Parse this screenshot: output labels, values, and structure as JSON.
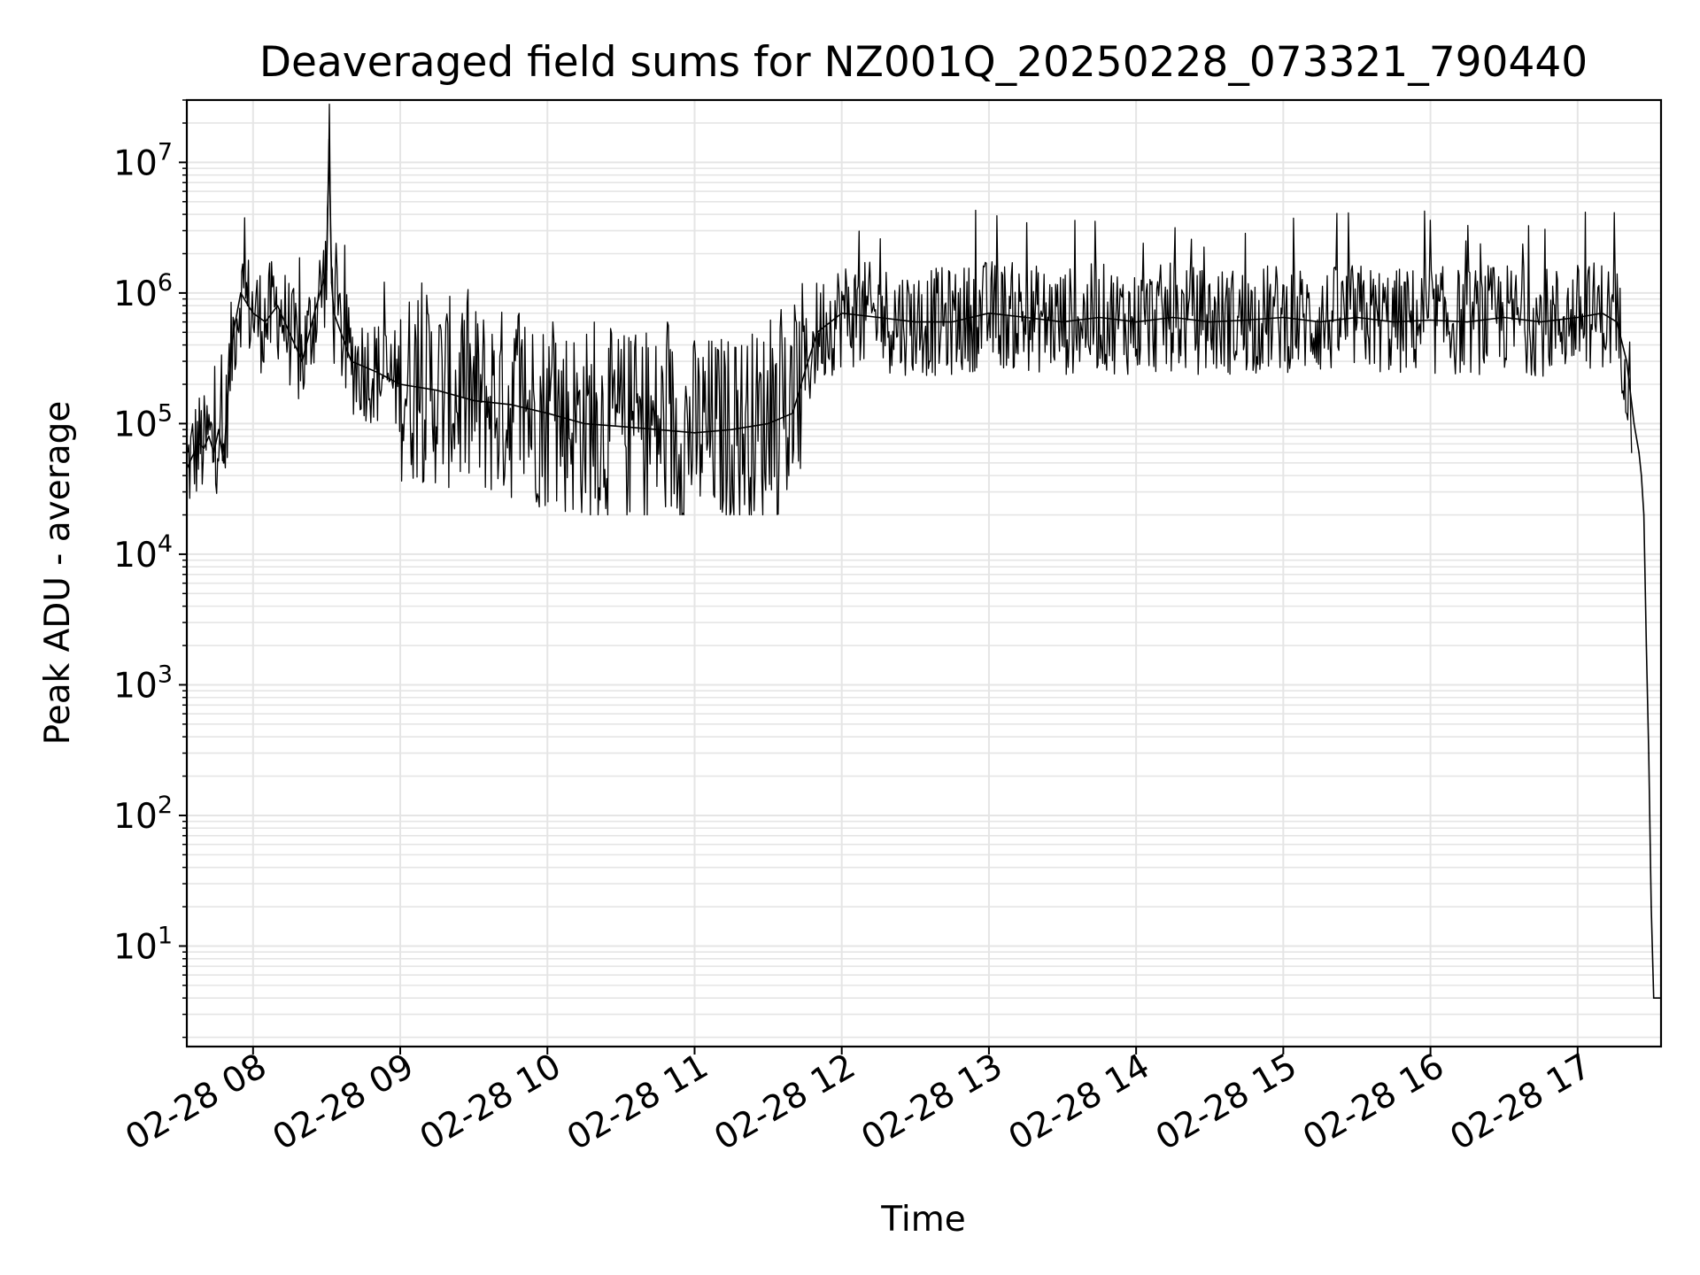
{
  "chart_data": {
    "type": "line",
    "title": "Deaveraged field sums for NZ001Q_20250228_073321_790440",
    "xlabel": "Time",
    "ylabel": "Peak ADU - average",
    "yscale": "log",
    "grid": true,
    "line_color": "#000000",
    "grid_color": "#e5e5e5",
    "xlim": [
      "2025-02-28 07:33",
      "2025-02-28 17:34"
    ],
    "ylim": [
      1.7,
      30000000
    ],
    "x_ticks": [
      {
        "value": "2025-02-28 08:00",
        "label": "02-28 08"
      },
      {
        "value": "2025-02-28 09:00",
        "label": "02-28 09"
      },
      {
        "value": "2025-02-28 10:00",
        "label": "02-28 10"
      },
      {
        "value": "2025-02-28 11:00",
        "label": "02-28 11"
      },
      {
        "value": "2025-02-28 12:00",
        "label": "02-28 12"
      },
      {
        "value": "2025-02-28 13:00",
        "label": "02-28 13"
      },
      {
        "value": "2025-02-28 14:00",
        "label": "02-28 14"
      },
      {
        "value": "2025-02-28 15:00",
        "label": "02-28 15"
      },
      {
        "value": "2025-02-28 16:00",
        "label": "02-28 16"
      },
      {
        "value": "2025-02-28 17:00",
        "label": "02-28 17"
      }
    ],
    "y_ticks": [
      {
        "value": 10,
        "base": "10",
        "exp": "1"
      },
      {
        "value": 100,
        "base": "10",
        "exp": "2"
      },
      {
        "value": 1000,
        "base": "10",
        "exp": "3"
      },
      {
        "value": 10000,
        "base": "10",
        "exp": "4"
      },
      {
        "value": 100000,
        "base": "10",
        "exp": "5"
      },
      {
        "value": 1000000,
        "base": "10",
        "exp": "6"
      },
      {
        "value": 10000000,
        "base": "10",
        "exp": "7"
      }
    ],
    "series": [
      {
        "x": [
          "2025-02-28 07:33",
          "2025-02-28 07:36",
          "2025-02-28 07:38",
          "2025-02-28 07:40",
          "2025-02-28 07:42",
          "2025-02-28 07:44",
          "2025-02-28 07:46",
          "2025-02-28 07:48",
          "2025-02-28 07:50",
          "2025-02-28 07:52",
          "2025-02-28 07:55",
          "2025-02-28 07:58",
          "2025-02-28 08:00",
          "2025-02-28 08:05",
          "2025-02-28 08:10",
          "2025-02-28 08:20",
          "2025-02-28 08:25",
          "2025-02-28 08:30",
          "2025-02-28 08:31",
          "2025-02-28 08:32",
          "2025-02-28 08:33",
          "2025-02-28 08:40",
          "2025-02-28 08:50",
          "2025-02-28 09:00",
          "2025-02-28 09:15",
          "2025-02-28 09:30",
          "2025-02-28 09:45",
          "2025-02-28 10:00",
          "2025-02-28 10:15",
          "2025-02-28 10:30",
          "2025-02-28 10:45",
          "2025-02-28 11:00",
          "2025-02-28 11:15",
          "2025-02-28 11:30",
          "2025-02-28 11:40",
          "2025-02-28 11:45",
          "2025-02-28 11:50",
          "2025-02-28 12:00",
          "2025-02-28 12:15",
          "2025-02-28 12:30",
          "2025-02-28 12:45",
          "2025-02-28 13:00",
          "2025-02-28 13:15",
          "2025-02-28 13:30",
          "2025-02-28 13:45",
          "2025-02-28 14:00",
          "2025-02-28 14:15",
          "2025-02-28 14:30",
          "2025-02-28 14:45",
          "2025-02-28 15:00",
          "2025-02-28 15:15",
          "2025-02-28 15:30",
          "2025-02-28 15:45",
          "2025-02-28 16:00",
          "2025-02-28 16:15",
          "2025-02-28 16:30",
          "2025-02-28 16:45",
          "2025-02-28 17:00",
          "2025-02-28 17:10",
          "2025-02-28 17:16",
          "2025-02-28 17:20",
          "2025-02-28 17:23",
          "2025-02-28 17:25",
          "2025-02-28 17:26",
          "2025-02-28 17:27",
          "2025-02-28 17:28",
          "2025-02-28 17:29",
          "2025-02-28 17:30",
          "2025-02-28 17:31",
          "2025-02-28 17:32",
          "2025-02-28 17:33",
          "2025-02-28 17:34"
        ],
        "y": [
          45000,
          60000,
          70000,
          65000,
          80000,
          60000,
          90000,
          50000,
          200000,
          500000,
          1000000,
          800000,
          700000,
          600000,
          800000,
          300000,
          700000,
          1500000,
          15000000,
          1200000,
          700000,
          300000,
          250000,
          200000,
          180000,
          150000,
          140000,
          120000,
          100000,
          95000,
          90000,
          85000,
          90000,
          100000,
          120000,
          250000,
          500000,
          700000,
          650000,
          600000,
          600000,
          700000,
          650000,
          600000,
          650000,
          600000,
          650000,
          600000,
          620000,
          650000,
          600000,
          650000,
          600000,
          620000,
          600000,
          650000,
          600000,
          650000,
          700000,
          600000,
          300000,
          100000,
          60000,
          40000,
          20000,
          2000,
          300,
          20,
          4,
          4,
          4,
          4
        ]
      }
    ]
  }
}
